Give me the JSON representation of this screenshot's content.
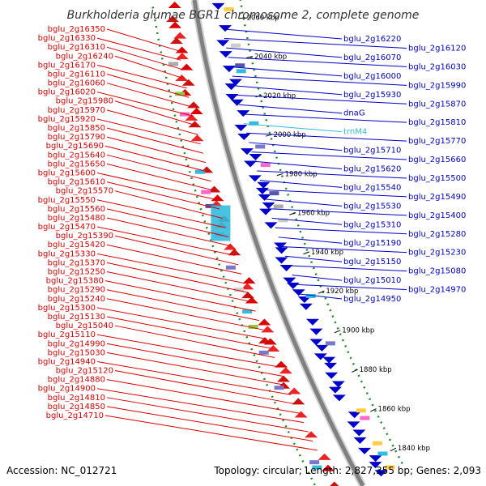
{
  "title": "Burkholderia glumae BGR1 chromosome 2, complete genome",
  "accession_text": "Accession: NC_012721",
  "info_text": "Topology: circular; Length: 2,827,355 bp; Genes: 2,093",
  "colors": {
    "forward": "#dd0000",
    "reverse": "#0000cc",
    "rna": "#33bbdd",
    "backbone": "#808080",
    "ruler": "#228822"
  },
  "ticks": [
    {
      "label": "2060 kbp",
      "pos": 2060
    },
    {
      "label": "2040 kbp",
      "pos": 2040
    },
    {
      "label": "2020 kbp",
      "pos": 2020
    },
    {
      "label": "2000 kbp",
      "pos": 2000
    },
    {
      "label": "1980 kbp",
      "pos": 1980
    },
    {
      "label": "1960 kbp",
      "pos": 1960
    },
    {
      "label": "1940 kbp",
      "pos": 1940
    },
    {
      "label": "1920 kbp",
      "pos": 1920
    },
    {
      "label": "1900 kbp",
      "pos": 1900
    },
    {
      "label": "1880 kbp",
      "pos": 1880
    },
    {
      "label": "1860 kbp",
      "pos": 1860
    },
    {
      "label": "1840 kbp",
      "pos": 1840
    }
  ],
  "left_labels": [
    {
      "text": "bglu_2g16350"
    },
    {
      "text": "bglu_2g16330"
    },
    {
      "text": "bglu_2g16310"
    },
    {
      "text": "bglu_2g16240"
    },
    {
      "text": "bglu_2g16170"
    },
    {
      "text": "bglu_2g16110"
    },
    {
      "text": "bglu_2g16060"
    },
    {
      "text": "bglu_2g16020"
    },
    {
      "text": "bglu_2g15980"
    },
    {
      "text": "bglu_2g15970"
    },
    {
      "text": "bglu_2g15920"
    },
    {
      "text": "bglu_2g15850"
    },
    {
      "text": "bglu_2g15790"
    },
    {
      "text": "bglu_2g15690"
    },
    {
      "text": "bglu_2g15640"
    },
    {
      "text": "bglu_2g15650"
    },
    {
      "text": "bglu_2g15600"
    },
    {
      "text": "bglu_2g15610"
    },
    {
      "text": "bglu_2g15570"
    },
    {
      "text": "bglu_2g15550"
    },
    {
      "text": "bglu_2g15560"
    },
    {
      "text": "bglu_2g15480"
    },
    {
      "text": "bglu_2g15470"
    },
    {
      "text": "bglu_2g15390"
    },
    {
      "text": "bglu_2g15420"
    },
    {
      "text": "bglu_2g15330"
    },
    {
      "text": "bglu_2g15370"
    },
    {
      "text": "bglu_2g15250"
    },
    {
      "text": "bglu_2g15380"
    },
    {
      "text": "bglu_2g15290"
    },
    {
      "text": "bglu_2g15240"
    },
    {
      "text": "bglu_2g15300"
    },
    {
      "text": "bglu_2g15130"
    },
    {
      "text": "bglu_2g15040"
    },
    {
      "text": "bglu_2g15110"
    },
    {
      "text": "bglu_2g14990"
    },
    {
      "text": "bglu_2g15030"
    },
    {
      "text": "bglu_2g14940"
    },
    {
      "text": "bglu_2g15120"
    },
    {
      "text": "bglu_2g14880"
    },
    {
      "text": "bglu_2g14900"
    },
    {
      "text": "bglu_2g14810"
    },
    {
      "text": "bglu_2g14850"
    },
    {
      "text": "bglu_2g14710"
    }
  ],
  "right_labels": [
    {
      "text": "bglu_2g16220"
    },
    {
      "text": "bglu_2g16120"
    },
    {
      "text": "bglu_2g16070"
    },
    {
      "text": "bglu_2g16030"
    },
    {
      "text": "bglu_2g16000"
    },
    {
      "text": "bglu_2g15990"
    },
    {
      "text": "bglu_2g15930"
    },
    {
      "text": "bglu_2g15870"
    },
    {
      "text": "dnaG"
    },
    {
      "text": "bglu_2g15810"
    },
    {
      "text": "trnM4"
    },
    {
      "text": "bglu_2g15770"
    },
    {
      "text": "bglu_2g15710"
    },
    {
      "text": "bglu_2g15660"
    },
    {
      "text": "bglu_2g15620"
    },
    {
      "text": "bglu_2g15500"
    },
    {
      "text": "bglu_2g15540"
    },
    {
      "text": "bglu_2g15490"
    },
    {
      "text": "bglu_2g15530"
    },
    {
      "text": "bglu_2g15400"
    },
    {
      "text": "bglu_2g15310"
    },
    {
      "text": "bglu_2g15280"
    },
    {
      "text": "bglu_2g15190"
    },
    {
      "text": "bglu_2g15230"
    },
    {
      "text": "bglu_2g15150"
    },
    {
      "text": "bglu_2g15080"
    },
    {
      "text": "bglu_2g15010"
    },
    {
      "text": "bglu_2g14970"
    },
    {
      "text": "bglu_2g14950"
    }
  ]
}
